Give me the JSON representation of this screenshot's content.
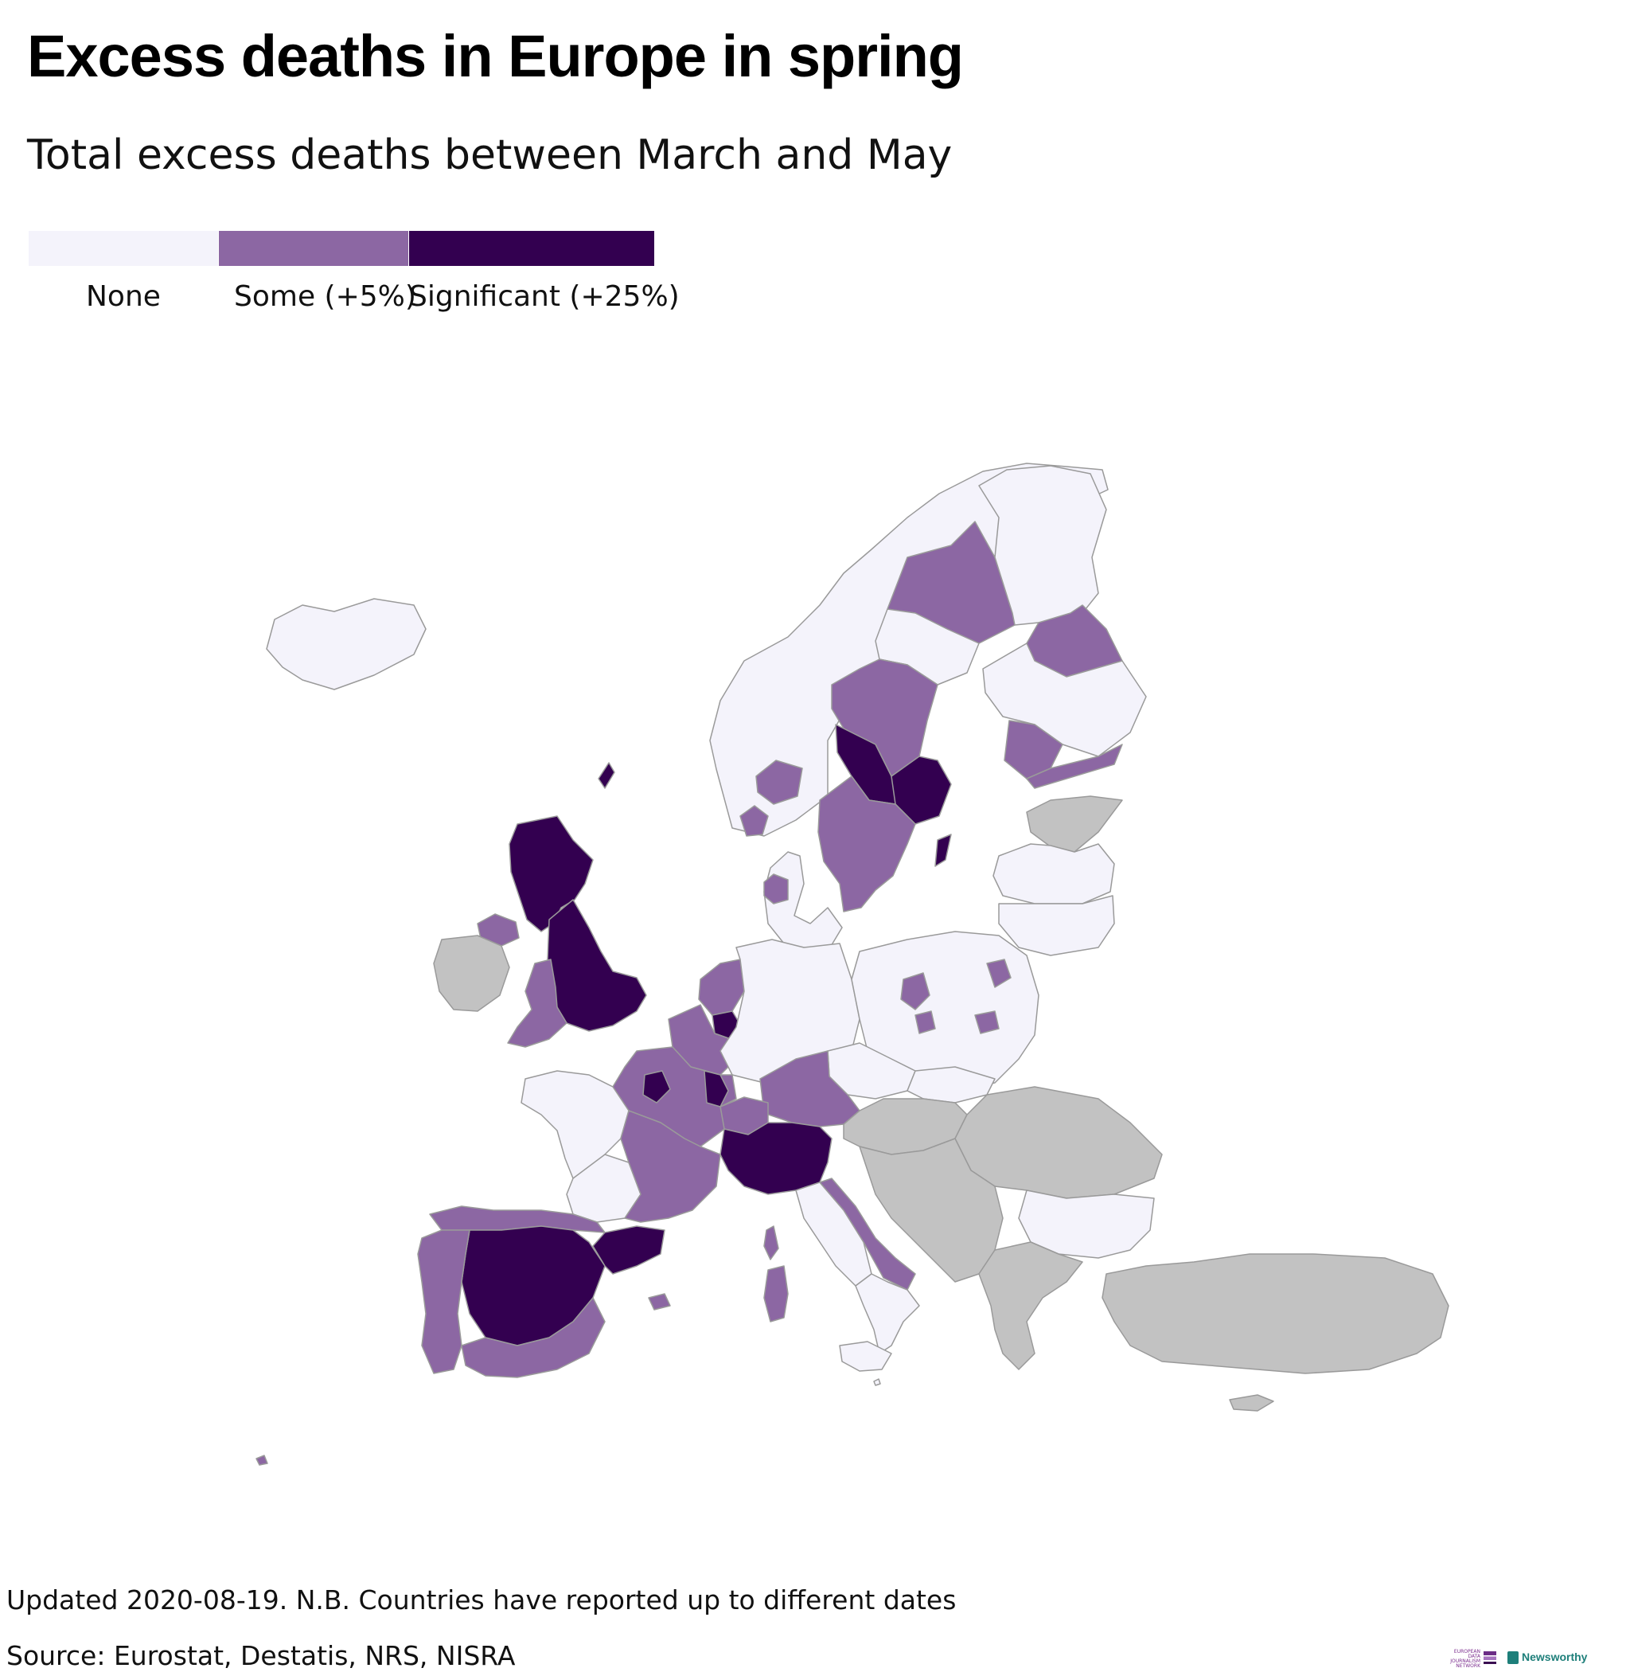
{
  "title": "Excess deaths in Europe in spring",
  "subtitle": "Total excess deaths between March and May",
  "legend": [
    {
      "label": "None",
      "color": "#f4f3fb"
    },
    {
      "label": "Some (+5%)",
      "color": "#8c67a3"
    },
    {
      "label": "Significant (+25%)",
      "color": "#330050"
    }
  ],
  "no_data_color": "#c2c2c2",
  "footer": {
    "note": "Updated 2020-08-19. N.B. Countries have reported up to different dates",
    "source": "Source: Eurostat, Destatis, NRS, NISRA"
  },
  "logos": {
    "edjnet": [
      "EUROPEAN",
      "DATA JOURNALISM",
      "NETWORK"
    ],
    "newsworthy": "Newsworthy"
  },
  "map": {
    "regions": [
      {
        "name": "iceland",
        "level": "none"
      },
      {
        "name": "norway",
        "level": "none"
      },
      {
        "name": "norway-south-region",
        "level": "some"
      },
      {
        "name": "norway-southwest-region",
        "level": "some"
      },
      {
        "name": "sweden-north",
        "level": "some"
      },
      {
        "name": "sweden-central",
        "level": "none"
      },
      {
        "name": "sweden-jamtland",
        "level": "some"
      },
      {
        "name": "sweden-dalarna",
        "level": "significant"
      },
      {
        "name": "sweden-stockholm",
        "level": "significant"
      },
      {
        "name": "sweden-south",
        "level": "some"
      },
      {
        "name": "gotland",
        "level": "significant"
      },
      {
        "name": "finland-lapland",
        "level": "none"
      },
      {
        "name": "finland-east",
        "level": "some"
      },
      {
        "name": "finland-central",
        "level": "none"
      },
      {
        "name": "finland-west",
        "level": "some"
      },
      {
        "name": "finland-south",
        "level": "some"
      },
      {
        "name": "estonia",
        "level": "nodata"
      },
      {
        "name": "latvia",
        "level": "none"
      },
      {
        "name": "lithuania",
        "level": "none"
      },
      {
        "name": "denmark",
        "level": "none"
      },
      {
        "name": "denmark-north",
        "level": "some"
      },
      {
        "name": "scotland",
        "level": "significant"
      },
      {
        "name": "shetland",
        "level": "significant"
      },
      {
        "name": "england",
        "level": "significant"
      },
      {
        "name": "wales",
        "level": "some"
      },
      {
        "name": "northern-ireland",
        "level": "some"
      },
      {
        "name": "ireland",
        "level": "nodata"
      },
      {
        "name": "netherlands",
        "level": "some"
      },
      {
        "name": "netherlands-south",
        "level": "significant"
      },
      {
        "name": "belgium",
        "level": "some"
      },
      {
        "name": "germany",
        "level": "none"
      },
      {
        "name": "poland",
        "level": "none"
      },
      {
        "name": "poland-regions-some",
        "level": "some"
      },
      {
        "name": "czechia",
        "level": "none"
      },
      {
        "name": "slovakia",
        "level": "none"
      },
      {
        "name": "austria",
        "level": "some"
      },
      {
        "name": "switzerland",
        "level": "some"
      },
      {
        "name": "france-northeast",
        "level": "some"
      },
      {
        "name": "france-paris",
        "level": "significant"
      },
      {
        "name": "france-alsace",
        "level": "significant"
      },
      {
        "name": "france-west",
        "level": "none"
      },
      {
        "name": "france-southwest",
        "level": "none"
      },
      {
        "name": "france-southeast",
        "level": "some"
      },
      {
        "name": "corsica",
        "level": "some"
      },
      {
        "name": "italy-north",
        "level": "significant"
      },
      {
        "name": "italy-center",
        "level": "none"
      },
      {
        "name": "italy-adriatic",
        "level": "some"
      },
      {
        "name": "italy-south",
        "level": "none"
      },
      {
        "name": "sardinia",
        "level": "some"
      },
      {
        "name": "sicily",
        "level": "none"
      },
      {
        "name": "spain-center",
        "level": "significant"
      },
      {
        "name": "catalonia",
        "level": "significant"
      },
      {
        "name": "spain-north",
        "level": "some"
      },
      {
        "name": "spain-south",
        "level": "some"
      },
      {
        "name": "portugal",
        "level": "some"
      },
      {
        "name": "balearic-islands",
        "level": "some"
      },
      {
        "name": "canary-islands",
        "level": "some"
      },
      {
        "name": "hungary",
        "level": "nodata"
      },
      {
        "name": "romania",
        "level": "nodata"
      },
      {
        "name": "balkans",
        "level": "nodata"
      },
      {
        "name": "bulgaria",
        "level": "none"
      },
      {
        "name": "greece",
        "level": "nodata"
      },
      {
        "name": "turkey",
        "level": "nodata"
      },
      {
        "name": "cyprus",
        "level": "nodata"
      },
      {
        "name": "malta",
        "level": "none"
      }
    ]
  }
}
